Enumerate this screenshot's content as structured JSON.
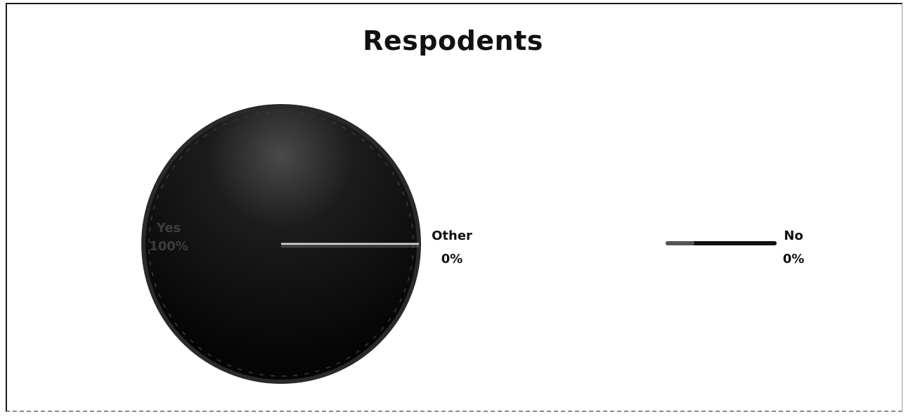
{
  "chart_data": {
    "type": "pie",
    "title": "Respodents",
    "slices": [
      {
        "label": "Yes",
        "value": 100,
        "pct_label": "100%",
        "color": "#0d0d0d"
      },
      {
        "label": "Other",
        "value": 0,
        "pct_label": "0%",
        "color": "#1f1f1f"
      },
      {
        "label": "No",
        "value": 0,
        "pct_label": "0%",
        "color": "#111111"
      }
    ],
    "legend": "none",
    "data_labels": "outside"
  }
}
